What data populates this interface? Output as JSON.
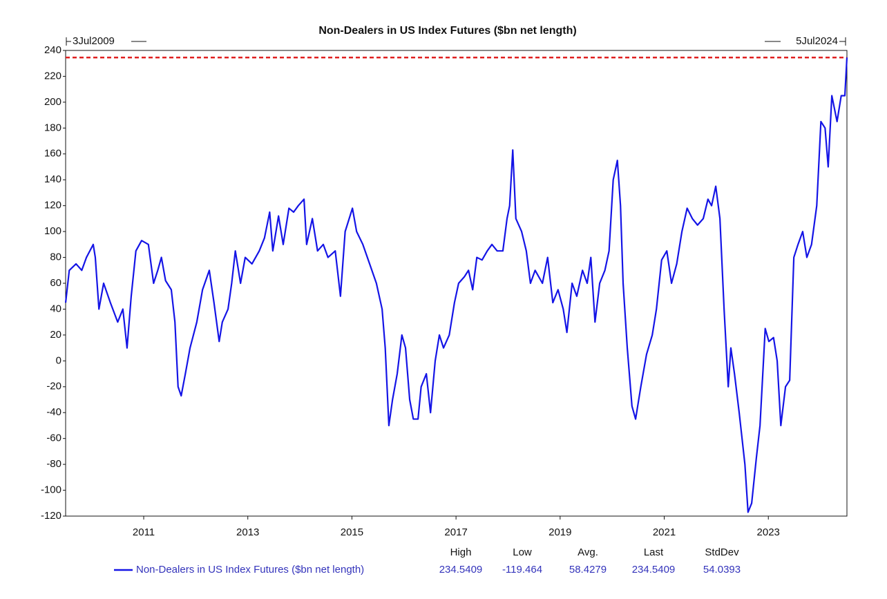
{
  "chart_data": {
    "type": "line",
    "title": "Non-Dealers in US Index Futures ($bn net length)",
    "start_label": "3Jul2009",
    "end_label": "5Jul2024",
    "x": [
      2009.5,
      2009.57,
      2009.7,
      2009.81,
      2009.9,
      2010.03,
      2010.07,
      2010.14,
      2010.23,
      2010.36,
      2010.5,
      2010.6,
      2010.68,
      2010.76,
      2010.85,
      2010.96,
      2011.09,
      2011.19,
      2011.27,
      2011.34,
      2011.42,
      2011.53,
      2011.6,
      2011.66,
      2011.72,
      2011.8,
      2011.89,
      2012.02,
      2012.13,
      2012.26,
      2012.35,
      2012.45,
      2012.51,
      2012.62,
      2012.69,
      2012.76,
      2012.86,
      2012.95,
      2013.08,
      2013.22,
      2013.32,
      2013.42,
      2013.48,
      2013.59,
      2013.68,
      2013.79,
      2013.88,
      2013.97,
      2014.08,
      2014.13,
      2014.24,
      2014.34,
      2014.45,
      2014.54,
      2014.68,
      2014.78,
      2014.87,
      2015.01,
      2015.09,
      2015.21,
      2015.34,
      2015.47,
      2015.58,
      2015.64,
      2015.71,
      2015.78,
      2015.87,
      2015.96,
      2016.03,
      2016.11,
      2016.18,
      2016.27,
      2016.33,
      2016.43,
      2016.51,
      2016.6,
      2016.68,
      2016.76,
      2016.87,
      2016.97,
      2017.05,
      2017.16,
      2017.24,
      2017.32,
      2017.4,
      2017.5,
      2017.6,
      2017.69,
      2017.79,
      2017.9,
      2017.98,
      2018.03,
      2018.09,
      2018.15,
      2018.26,
      2018.35,
      2018.43,
      2018.52,
      2018.66,
      2018.76,
      2018.86,
      2018.96,
      2019.06,
      2019.13,
      2019.23,
      2019.32,
      2019.43,
      2019.52,
      2019.59,
      2019.67,
      2019.76,
      2019.86,
      2019.94,
      2020.02,
      2020.1,
      2020.16,
      2020.21,
      2020.29,
      2020.38,
      2020.45,
      2020.55,
      2020.66,
      2020.77,
      2020.85,
      2020.95,
      2021.05,
      2021.14,
      2021.24,
      2021.34,
      2021.44,
      2021.54,
      2021.64,
      2021.75,
      2021.84,
      2021.91,
      2021.99,
      2022.07,
      2022.15,
      2022.23,
      2022.28,
      2022.35,
      2022.44,
      2022.55,
      2022.61,
      2022.68,
      2022.77,
      2022.84,
      2022.94,
      2023.01,
      2023.1,
      2023.17,
      2023.24,
      2023.33,
      2023.41,
      2023.49,
      2023.57,
      2023.66,
      2023.74,
      2023.83,
      2023.93,
      2024.01,
      2024.09,
      2024.15,
      2024.22,
      2024.32,
      2024.4,
      2024.47,
      2024.51
    ],
    "series": [
      {
        "name": "Non-Dealers in US Index Futures ($bn net length)",
        "color": "#1414e6",
        "values": [
          45,
          70,
          75,
          70,
          80,
          90,
          80,
          40,
          60,
          45,
          30,
          40,
          10,
          50,
          85,
          93,
          90,
          60,
          70,
          80,
          62,
          55,
          30,
          -20,
          -27,
          -10,
          10,
          30,
          55,
          70,
          45,
          15,
          30,
          40,
          60,
          85,
          60,
          80,
          75,
          85,
          95,
          115,
          85,
          112,
          90,
          118,
          115,
          120,
          125,
          90,
          110,
          85,
          90,
          80,
          85,
          50,
          100,
          118,
          100,
          90,
          75,
          60,
          40,
          10,
          -50,
          -30,
          -10,
          20,
          10,
          -30,
          -45,
          -45,
          -20,
          -10,
          -40,
          0,
          20,
          10,
          20,
          45,
          60,
          65,
          70,
          55,
          80,
          78,
          85,
          90,
          85,
          85,
          110,
          120,
          163,
          110,
          100,
          85,
          60,
          70,
          60,
          80,
          45,
          55,
          40,
          22,
          60,
          50,
          70,
          60,
          80,
          30,
          60,
          70,
          85,
          140,
          155,
          120,
          60,
          10,
          -35,
          -45,
          -20,
          5,
          20,
          40,
          78,
          85,
          60,
          75,
          100,
          118,
          110,
          105,
          110,
          125,
          120,
          135,
          110,
          40,
          -20,
          10,
          -10,
          -40,
          -80,
          -117,
          -110,
          -75,
          -50,
          25,
          15,
          18,
          0,
          -50,
          -20,
          -15,
          80,
          90,
          100,
          80,
          90,
          120,
          185,
          180,
          150,
          205,
          185,
          205,
          205,
          234.5409
        ]
      }
    ],
    "xlim": [
      2009.5,
      2024.51
    ],
    "xticks": [
      2011,
      2013,
      2015,
      2017,
      2019,
      2021,
      2023
    ],
    "ylim": [
      -120,
      240
    ],
    "yticks": [
      -120,
      -100,
      -80,
      -60,
      -40,
      -20,
      0,
      20,
      40,
      60,
      80,
      100,
      120,
      140,
      160,
      180,
      200,
      220,
      240
    ],
    "grid": false,
    "high_line_color": "#e02020",
    "stats": {
      "headers": [
        "High",
        "Low",
        "Avg.",
        "Last",
        "StdDev"
      ],
      "values": [
        234.5409,
        -119.464,
        58.4279,
        234.5409,
        54.0393
      ]
    }
  }
}
